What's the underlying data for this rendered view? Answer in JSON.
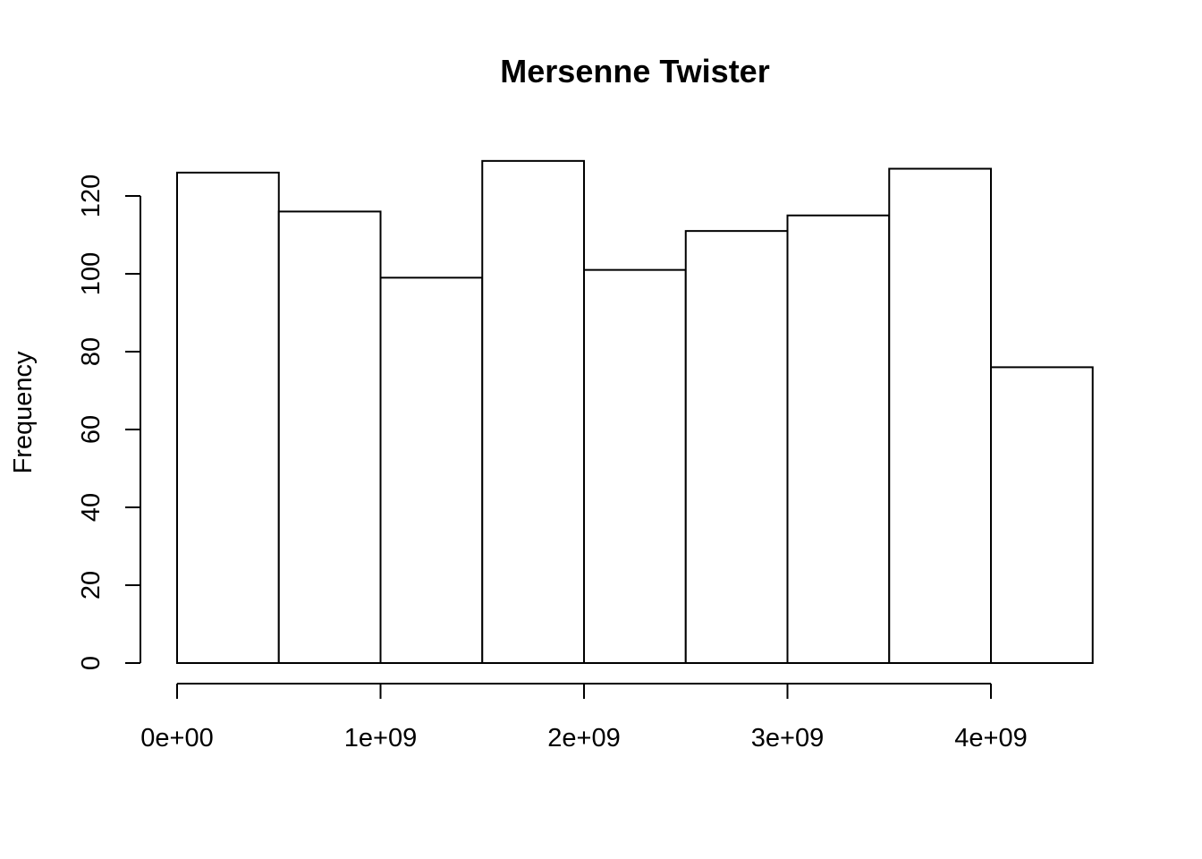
{
  "chart_data": {
    "type": "bar",
    "title": "Mersenne Twister",
    "xlabel": "",
    "ylabel": "Frequency",
    "bin_edges": [
      0,
      500000000,
      1000000000,
      1500000000,
      2000000000,
      2500000000,
      3000000000,
      3500000000,
      4000000000,
      4500000000
    ],
    "values": [
      126,
      116,
      99,
      129,
      101,
      111,
      115,
      127,
      76
    ],
    "xlim": [
      0,
      4500000000
    ],
    "ylim": [
      0,
      120
    ],
    "x_ticks": [
      0,
      1000000000,
      2000000000,
      3000000000,
      4000000000
    ],
    "x_tick_labels": [
      "0e+00",
      "1e+09",
      "2e+09",
      "3e+09",
      "4e+09"
    ],
    "y_ticks": [
      0,
      20,
      40,
      60,
      80,
      100,
      120
    ],
    "y_tick_labels": [
      "0",
      "20",
      "40",
      "60",
      "80",
      "100",
      "120"
    ],
    "grid": false,
    "legend": "none",
    "bar_fill": "#ffffff",
    "bar_stroke": "#000000"
  }
}
